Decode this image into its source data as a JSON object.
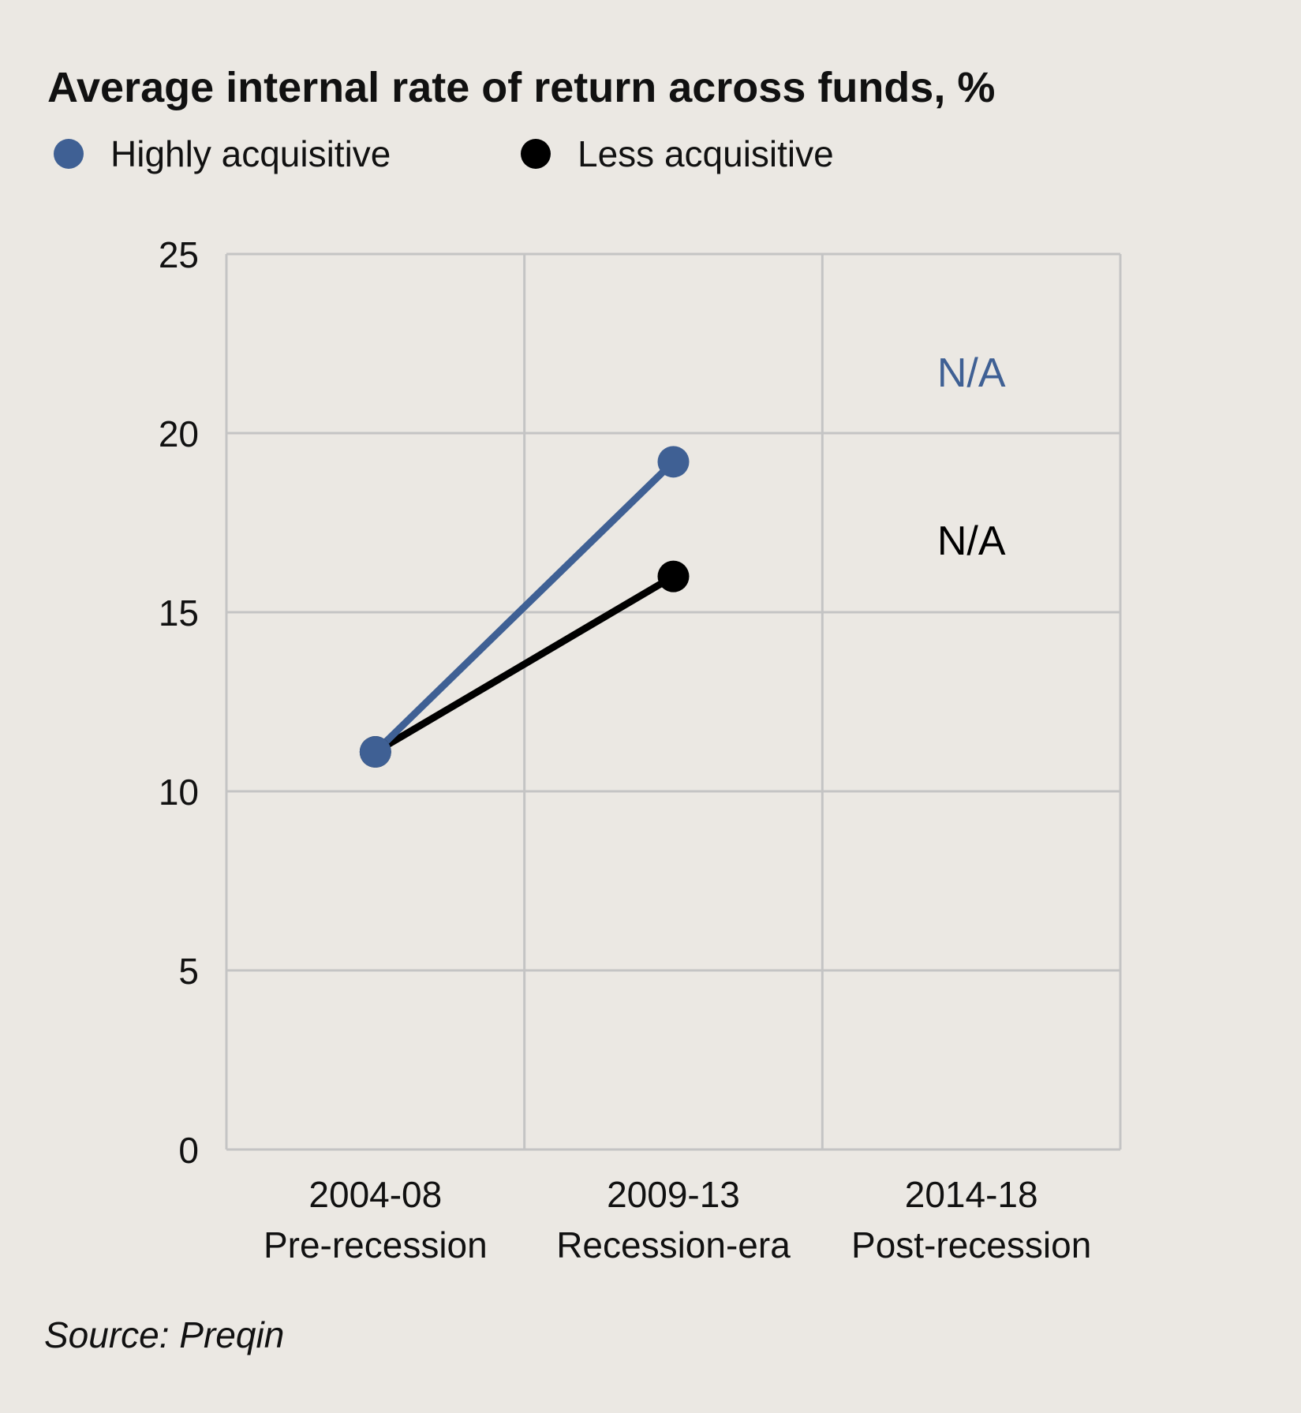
{
  "title": "Average internal rate of return across funds, %",
  "legend": [
    {
      "name": "Highly acquisitive",
      "color": "#3f6094"
    },
    {
      "name": "Less acquisitive",
      "color": "#000000"
    }
  ],
  "source": "Source: Preqin",
  "chart_data": {
    "type": "line",
    "title": "Average internal rate of return across funds, %",
    "xlabel": "",
    "ylabel": "",
    "categories": [
      [
        "2004-08",
        "Pre-recession"
      ],
      [
        "2009-13",
        "Recession-era"
      ],
      [
        "2014-18",
        "Post-recession"
      ]
    ],
    "yticks": [
      0,
      5,
      10,
      15,
      20,
      25
    ],
    "ylim": [
      0,
      25
    ],
    "grid": true,
    "legend_position": "top-left",
    "series": [
      {
        "name": "Highly acquisitive",
        "color": "#3f6094",
        "values": [
          11.1,
          19.2,
          null
        ]
      },
      {
        "name": "Less acquisitive",
        "color": "#000000",
        "values": [
          11.1,
          16.0,
          null
        ]
      }
    ],
    "annotations": [
      {
        "text": "N/A",
        "series": "Highly acquisitive",
        "category": "2014-18",
        "y": 21.7
      },
      {
        "text": "N/A",
        "series": "Less acquisitive",
        "category": "2014-18",
        "y": 17.0
      }
    ]
  }
}
